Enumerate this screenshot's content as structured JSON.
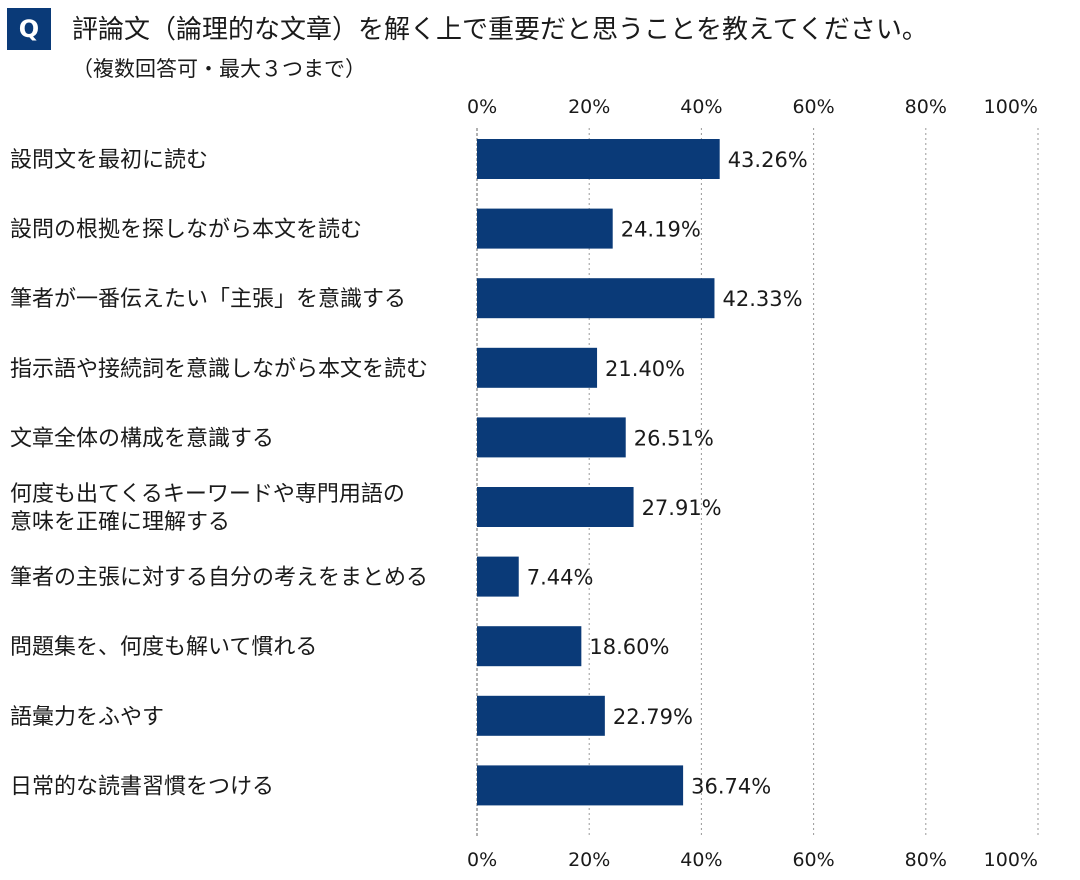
{
  "question": {
    "badge": "Q",
    "title": "評論文（論理的な文章）を解く上で重要だと思うことを教えてください。",
    "subtitle": "（複数回答可・最大３つまで）"
  },
  "colors": {
    "bar": "#0a3a78",
    "badge": "#0a3a78",
    "grid": "#999999"
  },
  "chart_data": {
    "type": "bar",
    "orientation": "horizontal",
    "xlim": [
      0,
      100
    ],
    "ticks": [
      "0%",
      "20%",
      "40%",
      "60%",
      "80%",
      "100%"
    ],
    "tick_values": [
      0,
      20,
      40,
      60,
      80,
      100
    ],
    "grid": true,
    "categories": [
      [
        "設問文を最初に読む"
      ],
      [
        "設問の根拠を探しながら本文を読む"
      ],
      [
        "筆者が一番伝えたい「主張」を意識する"
      ],
      [
        "指示語や接続詞を意識しながら本文を読む"
      ],
      [
        "文章全体の構成を意識する"
      ],
      [
        "何度も出てくるキーワードや専門用語の",
        "意味を正確に理解する"
      ],
      [
        "筆者の主張に対する自分の考えをまとめる"
      ],
      [
        "問題集を、何度も解いて慣れる"
      ],
      [
        "語彙力をふやす"
      ],
      [
        "日常的な読書習慣をつける"
      ]
    ],
    "values": [
      43.26,
      24.19,
      42.33,
      21.4,
      26.51,
      27.91,
      7.44,
      18.6,
      22.79,
      36.74
    ],
    "value_labels": [
      "43.26%",
      "24.19%",
      "42.33%",
      "21.40%",
      "26.51%",
      "27.91%",
      "7.44%",
      "18.60%",
      "22.79%",
      "36.74%"
    ]
  }
}
